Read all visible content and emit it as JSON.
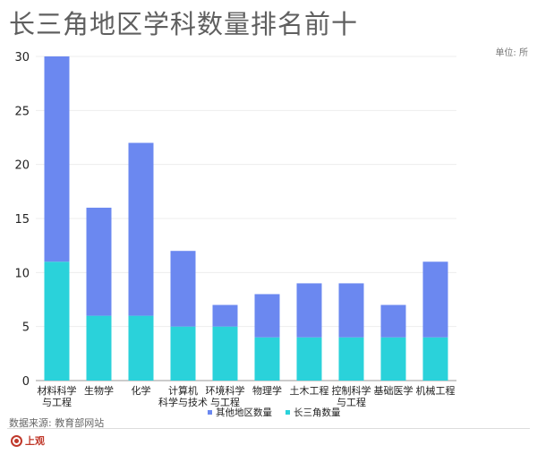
{
  "title": "长三角地区学科数量排名前十",
  "unit_label": "单位: 所",
  "source": "数据来源: 教育部网站",
  "logo_text": "上观",
  "colors": {
    "other": "#6b88f0",
    "yrd": "#2ad2da",
    "grid": "#ededed",
    "axis": "#999999"
  },
  "chart_data": {
    "type": "bar",
    "stacked": true,
    "categories": [
      "材料科学与工程",
      "生物学",
      "化学",
      "计算机科学与技术",
      "环境科学与工程",
      "物理学",
      "土木工程",
      "控制科学与工程",
      "基础医学",
      "机械工程"
    ],
    "category_lines": [
      [
        "材料科学",
        "与工程"
      ],
      [
        "生物学"
      ],
      [
        "化学"
      ],
      [
        "计算机",
        "科学与技术"
      ],
      [
        "环境科学",
        "与工程"
      ],
      [
        "物理学"
      ],
      [
        "土木工程"
      ],
      [
        "控制科学",
        "与工程"
      ],
      [
        "基础医学"
      ],
      [
        "机械工程"
      ]
    ],
    "series": [
      {
        "name": "长三角数量",
        "values": [
          11,
          6,
          6,
          5,
          5,
          4,
          4,
          4,
          4,
          4
        ]
      },
      {
        "name": "其他地区数量",
        "values": [
          19,
          10,
          16,
          7,
          2,
          4,
          5,
          5,
          3,
          7
        ]
      }
    ],
    "legend_order": [
      "其他地区数量",
      "长三角数量"
    ],
    "ylim": [
      0,
      30
    ],
    "yticks": [
      0,
      5,
      10,
      15,
      20,
      25,
      30
    ],
    "legend_position": "bottom",
    "grid": true
  }
}
